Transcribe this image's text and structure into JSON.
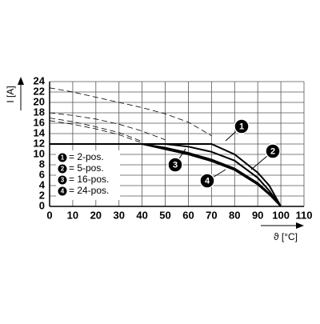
{
  "chart_data": {
    "type": "line",
    "y_label": "I [A]",
    "x_label": "ϑ [°C]",
    "x": [
      0,
      10,
      20,
      30,
      40,
      50,
      60,
      70,
      80,
      90,
      95,
      100
    ],
    "xlim": [
      0,
      110
    ],
    "xticks": [
      0,
      10,
      20,
      30,
      40,
      50,
      60,
      70,
      80,
      90,
      100,
      110
    ],
    "ylim": [
      0,
      24
    ],
    "yticks": [
      0,
      2,
      4,
      6,
      8,
      10,
      12,
      14,
      16,
      18,
      20,
      22,
      24
    ],
    "grid": true,
    "series": [
      {
        "name": "= 2-pos.",
        "marker": "1",
        "color": "#000000",
        "values": [
          12,
          12,
          12,
          12,
          12,
          12,
          12,
          12,
          10,
          6.5,
          4,
          0
        ],
        "dashed_values": [
          22.8,
          22,
          21,
          20,
          19,
          17.8,
          16.2,
          13.6,
          null,
          null,
          null,
          null
        ]
      },
      {
        "name": "= 5-pos.",
        "marker": "2",
        "color": "#000000",
        "values": [
          12,
          12,
          12,
          12,
          12,
          12,
          11.5,
          10.5,
          8.8,
          5.5,
          3,
          0
        ],
        "dashed_values": [
          18,
          17.5,
          16.8,
          15.8,
          14.5,
          12.8,
          null,
          null,
          null,
          null,
          null,
          null
        ]
      },
      {
        "name": "= 16-pos.",
        "marker": "3",
        "color": "#000000",
        "values": [
          12,
          12,
          12,
          12,
          12,
          11.3,
          10.3,
          9,
          7.3,
          4.5,
          2.5,
          0
        ],
        "dashed_values": [
          17,
          16.3,
          15.3,
          14.2,
          12.5,
          null,
          null,
          null,
          null,
          null,
          null,
          null
        ]
      },
      {
        "name": "= 24-pos.",
        "marker": "4",
        "color": "#000000",
        "values": [
          12,
          12,
          12,
          12,
          12,
          11,
          10,
          8.7,
          7,
          4.2,
          2.3,
          0
        ],
        "dashed_values": [
          16.5,
          15.8,
          14.9,
          13.8,
          12.2,
          null,
          null,
          null,
          null,
          null,
          null,
          null
        ]
      }
    ]
  }
}
